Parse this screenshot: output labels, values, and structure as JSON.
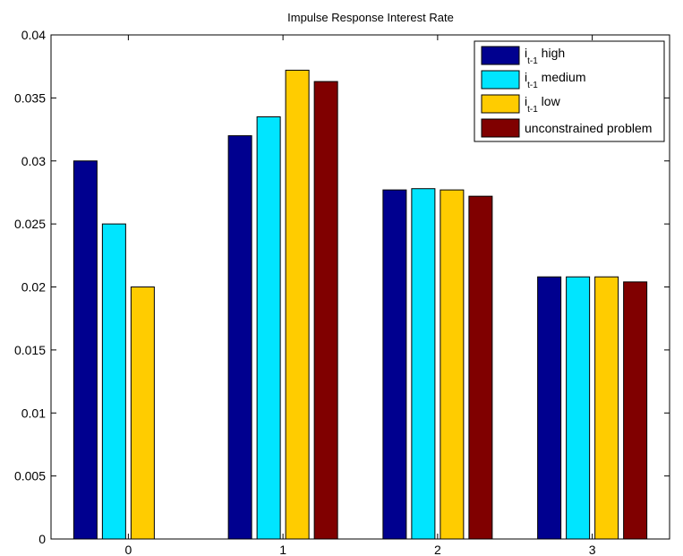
{
  "chart_data": {
    "type": "bar",
    "title": "Impulse Response Interest Rate",
    "xlabel": "",
    "ylabel": "",
    "categories": [
      "0",
      "1",
      "2",
      "3"
    ],
    "ylim": [
      0,
      0.04
    ],
    "yticks": [
      "0",
      "0.005",
      "0.01",
      "0.015",
      "0.02",
      "0.025",
      "0.03",
      "0.035",
      "0.04"
    ],
    "grid": false,
    "legend_position": "top-right",
    "series": [
      {
        "name": "i_{t-1} high",
        "legend_main": "i",
        "legend_sub": "t-1",
        "legend_suffix": "high",
        "color": "#00008f",
        "values": [
          0.03,
          0.032,
          0.0277,
          0.0208
        ]
      },
      {
        "name": "i_{t-1} medium",
        "legend_main": "i",
        "legend_sub": "t-1",
        "legend_suffix": "medium",
        "color": "#00e5ff",
        "values": [
          0.025,
          0.0335,
          0.0278,
          0.0208
        ]
      },
      {
        "name": "i_{t-1} low",
        "legend_main": "i",
        "legend_sub": "t-1",
        "legend_suffix": "low",
        "color": "#ffcc00",
        "values": [
          0.02,
          0.0372,
          0.0277,
          0.0208
        ]
      },
      {
        "name": "unconstrained problem",
        "legend_main": "unconstrained problem",
        "legend_sub": "",
        "legend_suffix": "",
        "color": "#800000",
        "values": [
          0,
          0.0363,
          0.0272,
          0.0204
        ]
      }
    ]
  }
}
